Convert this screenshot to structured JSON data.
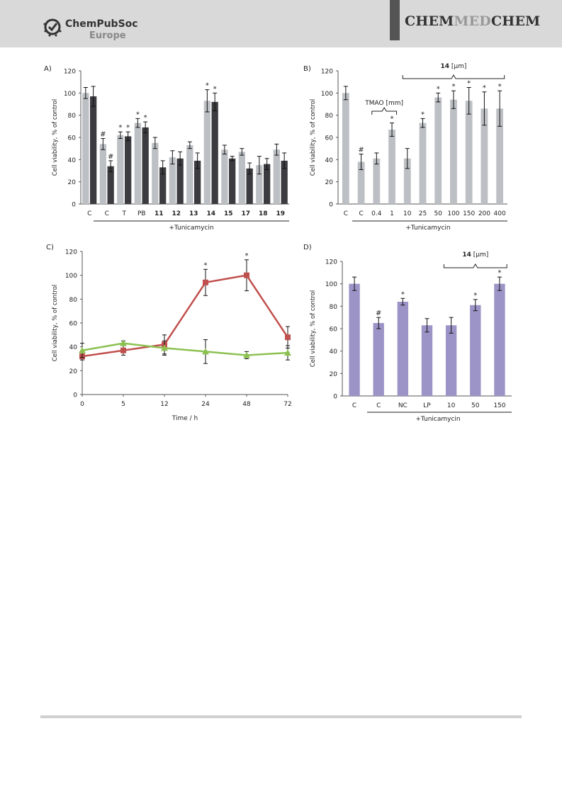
{
  "header": {
    "publisher_line1": "ChemPubSoc",
    "publisher_line2": "Europe",
    "journal": {
      "part1": "CHEM",
      "part2": "MED",
      "part3": "CHEM"
    }
  },
  "chart_data": [
    {
      "panel": "A)",
      "type": "bar",
      "ylabel": "Cell viability, % of control",
      "ylim": [
        0,
        120
      ],
      "yticks": [
        "0",
        "20",
        "40",
        "60",
        "80",
        "100",
        "120"
      ],
      "categories": [
        "C",
        "C",
        "T",
        "PB",
        "11",
        "12",
        "13",
        "14",
        "15",
        "17",
        "18",
        "19"
      ],
      "bold_categories": [
        false,
        false,
        false,
        false,
        true,
        true,
        true,
        true,
        true,
        true,
        true,
        true
      ],
      "series": [
        {
          "values": [
            100,
            54,
            62,
            73,
            55,
            42,
            53,
            93,
            49,
            47,
            35,
            49
          ],
          "errors": [
            5,
            5,
            3,
            4,
            5,
            6,
            3,
            10,
            4,
            3,
            8,
            5
          ],
          "color": "#bcbfc3"
        },
        {
          "values": [
            97,
            34,
            61,
            69,
            33,
            41,
            39,
            92,
            41,
            32,
            36,
            39
          ],
          "errors": [
            9,
            5,
            4,
            5,
            6,
            6,
            7,
            8,
            2,
            5,
            5,
            7
          ],
          "color": "#3c3c40"
        }
      ],
      "annotations": [
        {
          "category": 1,
          "series": 0,
          "text": "#"
        },
        {
          "category": 1,
          "series": 1,
          "text": "#"
        },
        {
          "category": 2,
          "series": 0,
          "text": "*"
        },
        {
          "category": 2,
          "series": 1,
          "text": "*"
        },
        {
          "category": 3,
          "series": 0,
          "text": "*"
        },
        {
          "category": 3,
          "series": 1,
          "text": "*"
        },
        {
          "category": 7,
          "series": 0,
          "text": "*"
        },
        {
          "category": 7,
          "series": 1,
          "text": "*"
        }
      ],
      "group_label": "+Tunicamycin"
    },
    {
      "panel": "B)",
      "type": "bar",
      "ylabel": "Cell viability, % of control",
      "ylim": [
        0,
        120
      ],
      "yticks": [
        "0",
        "20",
        "40",
        "60",
        "80",
        "100",
        "120"
      ],
      "categories": [
        "C",
        "C",
        "0.4",
        "1",
        "10",
        "25",
        "50",
        "100",
        "150",
        "200",
        "400"
      ],
      "series": [
        {
          "values": [
            100,
            38,
            41,
            67,
            41,
            73,
            96,
            94,
            93,
            86,
            86
          ],
          "errors": [
            6,
            7,
            5,
            6,
            9,
            4,
            4,
            8,
            12,
            15,
            16
          ],
          "color": "#bcbfc3"
        }
      ],
      "annotations": [
        {
          "category": 1,
          "series": 0,
          "text": "#"
        },
        {
          "category": 3,
          "series": 0,
          "text": "*"
        },
        {
          "category": 5,
          "series": 0,
          "text": "*"
        },
        {
          "category": 6,
          "series": 0,
          "text": "*"
        },
        {
          "category": 7,
          "series": 0,
          "text": "*"
        },
        {
          "category": 8,
          "series": 0,
          "text": "*"
        },
        {
          "category": 9,
          "series": 0,
          "text": "*"
        },
        {
          "category": 10,
          "series": 0,
          "text": "*"
        }
      ],
      "group_label": "+Tunicamycin",
      "brackets": [
        {
          "label": "TMAO [mm]",
          "from": 2,
          "to": 3
        },
        {
          "label_bold": "14",
          "label_rest": " [μm]",
          "from": 4,
          "to": 10
        }
      ]
    },
    {
      "panel": "C)",
      "type": "line",
      "ylabel": "Cell viability, % of control",
      "xlabel": "Time / h",
      "ylim": [
        0,
        120
      ],
      "yticks": [
        "0",
        "20",
        "40",
        "60",
        "80",
        "100",
        "120"
      ],
      "x": [
        "0",
        "5",
        "12",
        "24",
        "48",
        "72"
      ],
      "series": [
        {
          "values": [
            32,
            37,
            42,
            94,
            100,
            48
          ],
          "errors": [
            3,
            4,
            8,
            11,
            13,
            9
          ],
          "color": "#c0504d",
          "marker": "square"
        },
        {
          "values": [
            37,
            43,
            39,
            36,
            33,
            35
          ],
          "errors": [
            6,
            2,
            6,
            10,
            3,
            6
          ],
          "color": "#8cc152",
          "marker": "triangle"
        }
      ],
      "annotations": [
        {
          "category": 3,
          "series": 0,
          "text": "*"
        },
        {
          "category": 4,
          "series": 0,
          "text": "*"
        }
      ]
    },
    {
      "panel": "D)",
      "type": "bar",
      "ylabel": "Cell viability, % of control",
      "ylim": [
        0,
        120
      ],
      "yticks": [
        "0",
        "20",
        "40",
        "60",
        "80",
        "100",
        "120"
      ],
      "categories": [
        "C",
        "C",
        "NC",
        "LP",
        "10",
        "50",
        "150"
      ],
      "series": [
        {
          "values": [
            100,
            65,
            84,
            63,
            63,
            81,
            100
          ],
          "errors": [
            6,
            5,
            3,
            6,
            7,
            5,
            6
          ],
          "color": "#9c94c6"
        }
      ],
      "annotations": [
        {
          "category": 1,
          "series": 0,
          "text": "#"
        },
        {
          "category": 2,
          "series": 0,
          "text": "*"
        },
        {
          "category": 5,
          "series": 0,
          "text": "*"
        },
        {
          "category": 6,
          "series": 0,
          "text": "*"
        }
      ],
      "group_label": "+Tunicamycin",
      "brackets": [
        {
          "label_bold": "14",
          "label_rest": " [μm]",
          "from": 4,
          "to": 6
        }
      ]
    }
  ]
}
